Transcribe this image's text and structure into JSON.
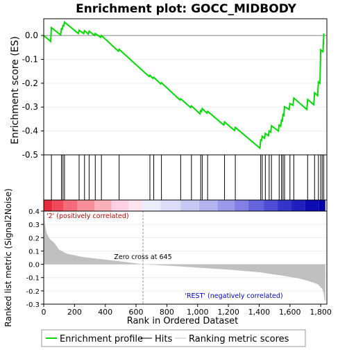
{
  "chart_data": {
    "type": "line",
    "title": "Enrichment plot: GOCC_MIDBODY",
    "top_panel": {
      "ylabel": "Enrichment score (ES)",
      "ylim": [
        -0.5,
        0.07
      ],
      "yticks": [
        0.0,
        -0.1,
        -0.2,
        -0.3,
        -0.4,
        -0.5
      ],
      "ytick_labels": [
        "0.0",
        "-0.1",
        "-0.2",
        "-0.3",
        "-0.4",
        "-0.5"
      ],
      "es_min": -0.47,
      "es_min_rank": 1410
    },
    "bottom_panel": {
      "xlabel": "Rank in Ordered Dataset",
      "ylabel": "Ranked list metric (Signal2Noise)",
      "ylim": [
        -0.3,
        0.4
      ],
      "yticks": [
        0.4,
        0.3,
        0.2,
        0.1,
        0.0,
        -0.1,
        -0.2,
        -0.3
      ],
      "ytick_labels": [
        "0.4",
        "0.3",
        "0.2",
        "0.1",
        "0.0",
        "-0.1",
        "-0.2",
        "-0.3"
      ],
      "xticks": [
        0,
        200,
        400,
        600,
        800,
        1000,
        1200,
        1400,
        1600,
        1800
      ],
      "xtick_labels": [
        "0",
        "200",
        "400",
        "600",
        "800",
        "1,000",
        "1,200",
        "1,400",
        "1,600",
        "1,800"
      ],
      "zero_cross_label": "Zero cross at 645",
      "zero_cross_rank": 645,
      "pos_label": "'2' (positively correlated)",
      "neg_label": "'REST' (negatively correlated)"
    },
    "xlim": [
      0,
      1840
    ],
    "n_genes": 1830,
    "hits": [
      50,
      115,
      125,
      135,
      230,
      265,
      295,
      335,
      375,
      490,
      690,
      715,
      765,
      890,
      960,
      1020,
      1030,
      1065,
      1175,
      1245,
      1410,
      1420,
      1440,
      1465,
      1480,
      1530,
      1545,
      1555,
      1565,
      1600,
      1625,
      1715,
      1760,
      1785,
      1800,
      1810,
      1820
    ],
    "es_curve": [
      {
        "x": 0,
        "y": 0.0
      },
      {
        "x": 45,
        "y": -0.025
      },
      {
        "x": 50,
        "y": 0.033
      },
      {
        "x": 110,
        "y": 0.002
      },
      {
        "x": 115,
        "y": 0.028
      },
      {
        "x": 120,
        "y": 0.026
      },
      {
        "x": 125,
        "y": 0.042
      },
      {
        "x": 130,
        "y": 0.04
      },
      {
        "x": 135,
        "y": 0.056
      },
      {
        "x": 225,
        "y": 0.008
      },
      {
        "x": 230,
        "y": 0.022
      },
      {
        "x": 260,
        "y": 0.008
      },
      {
        "x": 265,
        "y": 0.02
      },
      {
        "x": 290,
        "y": 0.006
      },
      {
        "x": 295,
        "y": 0.018
      },
      {
        "x": 330,
        "y": 0.0
      },
      {
        "x": 335,
        "y": 0.008
      },
      {
        "x": 370,
        "y": -0.008
      },
      {
        "x": 375,
        "y": 0.0
      },
      {
        "x": 485,
        "y": -0.066
      },
      {
        "x": 490,
        "y": -0.058
      },
      {
        "x": 685,
        "y": -0.172
      },
      {
        "x": 690,
        "y": -0.167
      },
      {
        "x": 710,
        "y": -0.18
      },
      {
        "x": 715,
        "y": -0.175
      },
      {
        "x": 760,
        "y": -0.203
      },
      {
        "x": 765,
        "y": -0.198
      },
      {
        "x": 885,
        "y": -0.27
      },
      {
        "x": 890,
        "y": -0.265
      },
      {
        "x": 955,
        "y": -0.302
      },
      {
        "x": 960,
        "y": -0.295
      },
      {
        "x": 1015,
        "y": -0.328
      },
      {
        "x": 1020,
        "y": -0.315
      },
      {
        "x": 1025,
        "y": -0.318
      },
      {
        "x": 1030,
        "y": -0.306
      },
      {
        "x": 1060,
        "y": -0.325
      },
      {
        "x": 1065,
        "y": -0.318
      },
      {
        "x": 1170,
        "y": -0.375
      },
      {
        "x": 1175,
        "y": -0.362
      },
      {
        "x": 1240,
        "y": -0.398
      },
      {
        "x": 1245,
        "y": -0.385
      },
      {
        "x": 1405,
        "y": -0.472
      },
      {
        "x": 1410,
        "y": -0.438
      },
      {
        "x": 1415,
        "y": -0.44
      },
      {
        "x": 1420,
        "y": -0.422
      },
      {
        "x": 1435,
        "y": -0.43
      },
      {
        "x": 1440,
        "y": -0.41
      },
      {
        "x": 1460,
        "y": -0.42
      },
      {
        "x": 1465,
        "y": -0.4
      },
      {
        "x": 1475,
        "y": -0.405
      },
      {
        "x": 1480,
        "y": -0.378
      },
      {
        "x": 1525,
        "y": -0.4
      },
      {
        "x": 1530,
        "y": -0.375
      },
      {
        "x": 1540,
        "y": -0.38
      },
      {
        "x": 1545,
        "y": -0.355
      },
      {
        "x": 1550,
        "y": -0.358
      },
      {
        "x": 1555,
        "y": -0.332
      },
      {
        "x": 1560,
        "y": -0.335
      },
      {
        "x": 1565,
        "y": -0.298
      },
      {
        "x": 1595,
        "y": -0.31
      },
      {
        "x": 1600,
        "y": -0.285
      },
      {
        "x": 1620,
        "y": -0.292
      },
      {
        "x": 1625,
        "y": -0.262
      },
      {
        "x": 1710,
        "y": -0.31
      },
      {
        "x": 1715,
        "y": -0.268
      },
      {
        "x": 1755,
        "y": -0.29
      },
      {
        "x": 1760,
        "y": -0.24
      },
      {
        "x": 1780,
        "y": -0.252
      },
      {
        "x": 1785,
        "y": -0.195
      },
      {
        "x": 1795,
        "y": -0.2
      },
      {
        "x": 1800,
        "y": -0.06
      },
      {
        "x": 1805,
        "y": -0.063
      },
      {
        "x": 1810,
        "y": -0.066
      },
      {
        "x": 1815,
        "y": -0.068
      },
      {
        "x": 1820,
        "y": 0.005
      },
      {
        "x": 1825,
        "y": 0.003
      }
    ],
    "metric_curve": [
      {
        "x": 0,
        "y": 0.41
      },
      {
        "x": 8,
        "y": 0.3
      },
      {
        "x": 20,
        "y": 0.23
      },
      {
        "x": 40,
        "y": 0.19
      },
      {
        "x": 70,
        "y": 0.16
      },
      {
        "x": 100,
        "y": 0.11
      },
      {
        "x": 150,
        "y": 0.08
      },
      {
        "x": 250,
        "y": 0.055
      },
      {
        "x": 400,
        "y": 0.035
      },
      {
        "x": 550,
        "y": 0.015
      },
      {
        "x": 645,
        "y": 0.0
      },
      {
        "x": 800,
        "y": -0.01
      },
      {
        "x": 1000,
        "y": -0.025
      },
      {
        "x": 1200,
        "y": -0.04
      },
      {
        "x": 1400,
        "y": -0.06
      },
      {
        "x": 1550,
        "y": -0.085
      },
      {
        "x": 1650,
        "y": -0.105
      },
      {
        "x": 1720,
        "y": -0.125
      },
      {
        "x": 1780,
        "y": -0.15
      },
      {
        "x": 1810,
        "y": -0.185
      },
      {
        "x": 1820,
        "y": -0.22
      },
      {
        "x": 1825,
        "y": -0.27
      },
      {
        "x": 1830,
        "y": -0.28
      }
    ],
    "heat_bands": [
      {
        "x0": 0,
        "x1": 55,
        "color": "#e8283c"
      },
      {
        "x0": 55,
        "x1": 130,
        "color": "#f04858"
      },
      {
        "x0": 130,
        "x1": 220,
        "color": "#f46c7a"
      },
      {
        "x0": 220,
        "x1": 330,
        "color": "#f78e9a"
      },
      {
        "x0": 330,
        "x1": 440,
        "color": "#fab0b8"
      },
      {
        "x0": 440,
        "x1": 550,
        "color": "#fcd0e0"
      },
      {
        "x0": 550,
        "x1": 645,
        "color": "#fde4ee"
      },
      {
        "x0": 645,
        "x1": 760,
        "color": "#ececfa"
      },
      {
        "x0": 760,
        "x1": 890,
        "color": "#dcdcf8"
      },
      {
        "x0": 890,
        "x1": 1010,
        "color": "#c8c8f4"
      },
      {
        "x0": 1010,
        "x1": 1130,
        "color": "#b4b4f0"
      },
      {
        "x0": 1130,
        "x1": 1240,
        "color": "#9a9aec"
      },
      {
        "x0": 1240,
        "x1": 1330,
        "color": "#8080e6"
      },
      {
        "x0": 1330,
        "x1": 1430,
        "color": "#6464dc"
      },
      {
        "x0": 1430,
        "x1": 1520,
        "color": "#4c4cd4"
      },
      {
        "x0": 1520,
        "x1": 1610,
        "color": "#3434ca"
      },
      {
        "x0": 1610,
        "x1": 1700,
        "color": "#2020c0"
      },
      {
        "x0": 1700,
        "x1": 1790,
        "color": "#0c0cb4"
      },
      {
        "x0": 1790,
        "x1": 1830,
        "color": "#0000a8"
      }
    ],
    "legend": {
      "entries": [
        "Enrichment profile",
        "Hits",
        "Ranking metric scores"
      ],
      "placement": "bottom"
    },
    "colors": {
      "profile": "#00dd00",
      "hits": "#000000",
      "metric_fill": "#c0c0c0",
      "zero_cross_line": "#999999",
      "pos_label": "#cc0000",
      "neg_label": "#0000cc"
    }
  }
}
